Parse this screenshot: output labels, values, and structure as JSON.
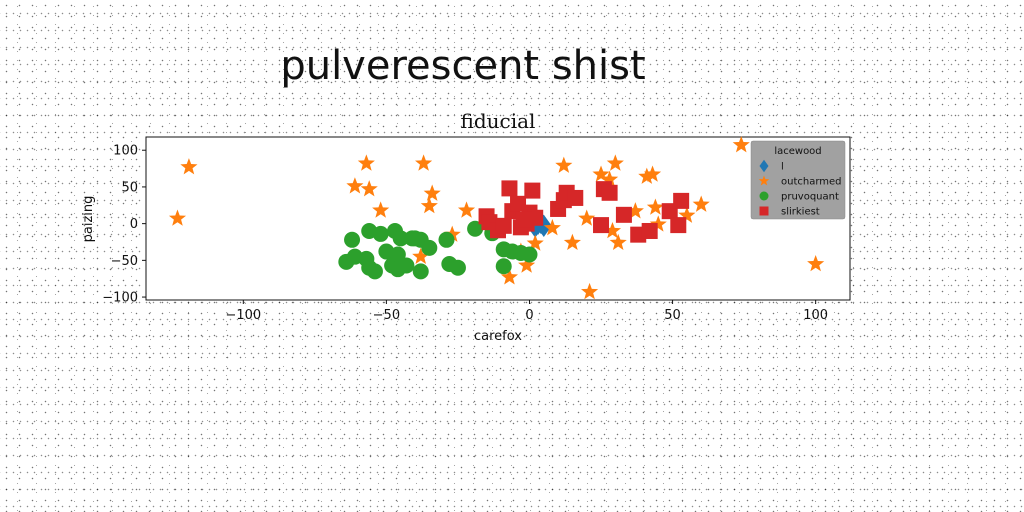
{
  "figure": {
    "suptitle": "pulverescent shist"
  },
  "chart_data": {
    "type": "scatter",
    "title": "fiducial",
    "xlabel": "carefox",
    "ylabel": "paizing",
    "xlim": [
      -134,
      112
    ],
    "ylim": [
      -104,
      118
    ],
    "xticks": [
      -100,
      -50,
      0,
      50,
      100
    ],
    "yticks": [
      -100,
      -50,
      0,
      50,
      100
    ],
    "grid": false,
    "legend": {
      "title": "lacewood",
      "placement": "top-right"
    },
    "series": [
      {
        "name": "l",
        "marker": "diamond",
        "color": "#1f77b4",
        "points": [
          [
            3,
            0
          ],
          [
            5,
            -3
          ],
          [
            2,
            -4
          ],
          [
            4,
            1
          ]
        ]
      },
      {
        "name": "outcharmed",
        "marker": "star",
        "color": "#ff7f0e",
        "points": [
          [
            -119,
            77
          ],
          [
            -123,
            7
          ],
          [
            -57,
            82
          ],
          [
            -56,
            47
          ],
          [
            -61,
            51
          ],
          [
            -52,
            18
          ],
          [
            -37,
            82
          ],
          [
            -34,
            41
          ],
          [
            -35,
            24
          ],
          [
            -22,
            18
          ],
          [
            -27,
            -15
          ],
          [
            -38,
            -45
          ],
          [
            -7,
            -73
          ],
          [
            -1,
            -57
          ],
          [
            2,
            -27
          ],
          [
            12,
            79
          ],
          [
            15,
            -26
          ],
          [
            20,
            7
          ],
          [
            21,
            -93
          ],
          [
            25,
            67
          ],
          [
            28,
            60
          ],
          [
            30,
            82
          ],
          [
            31,
            -26
          ],
          [
            37,
            17
          ],
          [
            41,
            64
          ],
          [
            43,
            67
          ],
          [
            44,
            22
          ],
          [
            45,
            -1
          ],
          [
            55,
            11
          ],
          [
            60,
            26
          ],
          [
            74,
            107
          ],
          [
            100,
            -55
          ],
          [
            -3,
            -38
          ],
          [
            8,
            -6
          ],
          [
            27,
            48
          ],
          [
            29,
            -10
          ]
        ]
      },
      {
        "name": "pruvoquant",
        "marker": "circle",
        "color": "#2ca02c",
        "points": [
          [
            -62,
            -22
          ],
          [
            -61,
            -45
          ],
          [
            -64,
            -52
          ],
          [
            -57,
            -48
          ],
          [
            -56,
            -60
          ],
          [
            -56,
            -10
          ],
          [
            -54,
            -65
          ],
          [
            -52,
            -14
          ],
          [
            -50,
            -38
          ],
          [
            -48,
            -57
          ],
          [
            -47,
            -10
          ],
          [
            -46,
            -42
          ],
          [
            -46,
            -62
          ],
          [
            -45,
            -20
          ],
          [
            -43,
            -57
          ],
          [
            -41,
            -20
          ],
          [
            -40,
            -20
          ],
          [
            -38,
            -22
          ],
          [
            -38,
            -65
          ],
          [
            -35,
            -33
          ],
          [
            -29,
            -22
          ],
          [
            -28,
            -55
          ],
          [
            -25,
            -60
          ],
          [
            -19,
            -7
          ],
          [
            -13,
            -13
          ],
          [
            -9,
            -35
          ],
          [
            -9,
            -58
          ],
          [
            -6,
            -38
          ],
          [
            -3,
            -40
          ],
          [
            0,
            -42
          ]
        ]
      },
      {
        "name": "slirkiest",
        "marker": "square",
        "color": "#d62728",
        "points": [
          [
            -15,
            10
          ],
          [
            -14,
            2
          ],
          [
            -11,
            -9
          ],
          [
            -9,
            -3
          ],
          [
            -7,
            48
          ],
          [
            -6,
            17
          ],
          [
            -4,
            27
          ],
          [
            -3,
            -5
          ],
          [
            -1,
            0
          ],
          [
            0,
            15
          ],
          [
            1,
            45
          ],
          [
            2,
            8
          ],
          [
            10,
            20
          ],
          [
            12,
            32
          ],
          [
            13,
            42
          ],
          [
            16,
            35
          ],
          [
            26,
            47
          ],
          [
            28,
            42
          ],
          [
            25,
            -2
          ],
          [
            33,
            12
          ],
          [
            38,
            -15
          ],
          [
            42,
            -10
          ],
          [
            49,
            17
          ],
          [
            53,
            31
          ],
          [
            52,
            -2
          ],
          [
            -2,
            5
          ]
        ]
      }
    ]
  }
}
